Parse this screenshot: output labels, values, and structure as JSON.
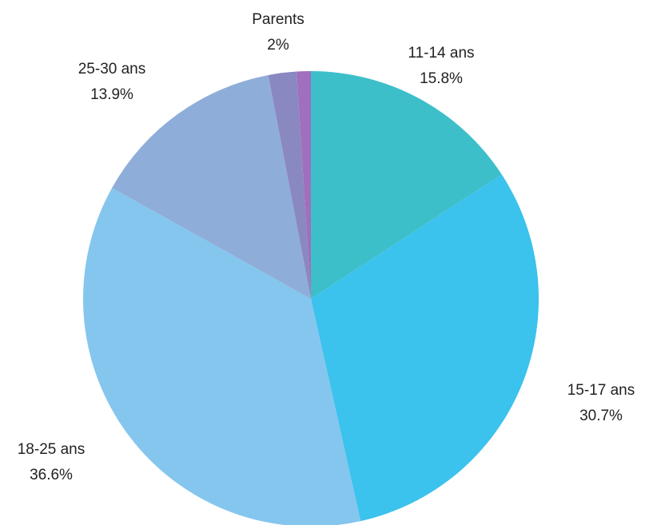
{
  "chart_data": {
    "type": "pie",
    "start_angle": "12 o'clock",
    "direction": "clockwise",
    "slices": [
      {
        "label": "11-14 ans",
        "value": 15.8,
        "display": "15.8%",
        "color": "#3dbfca"
      },
      {
        "label": "15-17 ans",
        "value": 30.7,
        "display": "30.7%",
        "color": "#3bc2ed"
      },
      {
        "label": "18-25 ans",
        "value": 36.6,
        "display": "36.6%",
        "color": "#84c6ee"
      },
      {
        "label": "25-30 ans",
        "value": 13.9,
        "display": "13.9%",
        "color": "#8fadd9"
      },
      {
        "label": "Parents",
        "value": 2,
        "display": "2%",
        "color": "#8a88c0"
      },
      {
        "label": "",
        "value": 1,
        "display": "",
        "color": "#a06fbd"
      }
    ]
  }
}
